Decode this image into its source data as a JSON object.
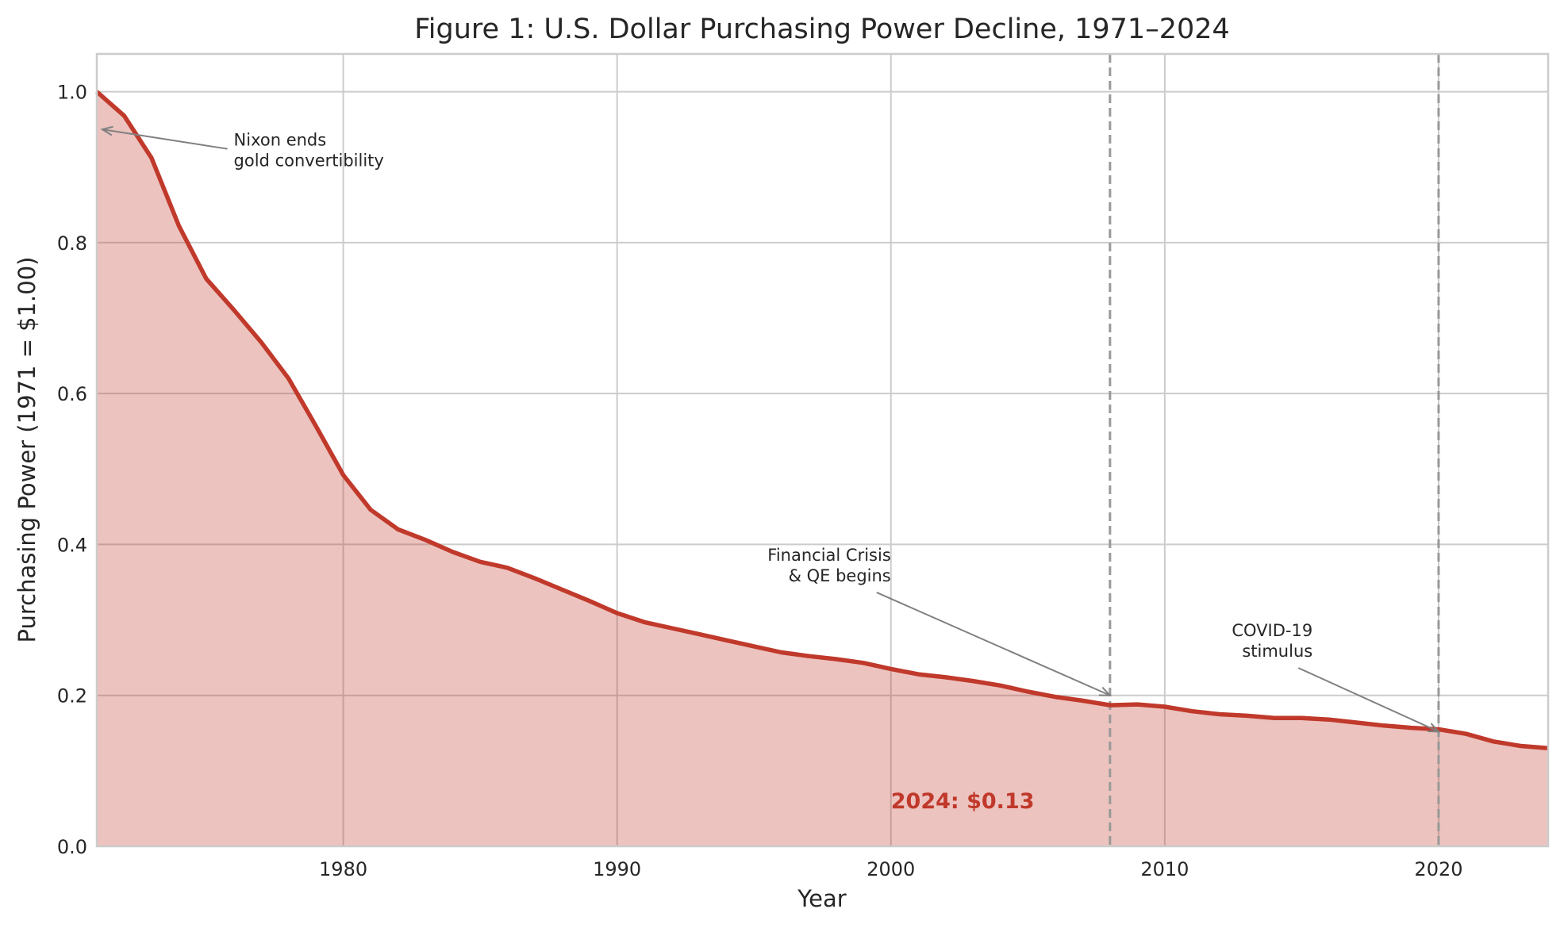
{
  "chart_data": {
    "type": "area",
    "title": "Figure 1: U.S. Dollar Purchasing Power Decline, 1971–2024",
    "xlabel": "Year",
    "ylabel": "Purchasing Power (1971 = $1.00)",
    "xlim": [
      1971,
      2024
    ],
    "ylim": [
      0,
      1.05
    ],
    "xticks": [
      1980,
      1990,
      2000,
      2010,
      2020
    ],
    "yticks": [
      0.0,
      0.2,
      0.4,
      0.6,
      0.8,
      1.0
    ],
    "ytick_labels": [
      "0.0",
      "0.2",
      "0.4",
      "0.6",
      "0.8",
      "1.0"
    ],
    "grid": true,
    "colors": {
      "line": "#c0392b",
      "fill": "#c0392b",
      "grid": "#cccccc",
      "annotation": "#808080",
      "vline": "#999999"
    },
    "x": [
      1971,
      1972,
      1973,
      1974,
      1975,
      1976,
      1977,
      1978,
      1979,
      1980,
      1981,
      1982,
      1983,
      1984,
      1985,
      1986,
      1987,
      1988,
      1989,
      1990,
      1991,
      1992,
      1993,
      1994,
      1995,
      1996,
      1997,
      1998,
      1999,
      2000,
      2001,
      2002,
      2003,
      2004,
      2005,
      2006,
      2007,
      2008,
      2009,
      2010,
      2011,
      2012,
      2013,
      2014,
      2015,
      2016,
      2017,
      2018,
      2019,
      2020,
      2021,
      2022,
      2023,
      2024
    ],
    "values": [
      1.0,
      0.968,
      0.912,
      0.822,
      0.752,
      0.711,
      0.668,
      0.62,
      0.557,
      0.492,
      0.446,
      0.42,
      0.406,
      0.39,
      0.377,
      0.369,
      0.355,
      0.34,
      0.325,
      0.309,
      0.297,
      0.289,
      0.281,
      0.273,
      0.265,
      0.257,
      0.252,
      0.248,
      0.243,
      0.235,
      0.228,
      0.224,
      0.219,
      0.213,
      0.205,
      0.198,
      0.193,
      0.187,
      0.188,
      0.185,
      0.179,
      0.175,
      0.173,
      0.17,
      0.17,
      0.168,
      0.164,
      0.16,
      0.157,
      0.155,
      0.149,
      0.139,
      0.133,
      0.13
    ],
    "vlines": [
      2008,
      2020
    ],
    "annotations": [
      {
        "lines": [
          "Nixon ends",
          "gold convertibility"
        ],
        "xy": [
          1971.2,
          0.95
        ],
        "xytext": [
          1976,
          0.92
        ],
        "align": "left"
      },
      {
        "lines": [
          "Financial Crisis",
          "& QE begins"
        ],
        "xy": [
          2008,
          0.2
        ],
        "xytext": [
          2000,
          0.37
        ],
        "align": "right"
      },
      {
        "lines": [
          "COVID-19",
          "stimulus"
        ],
        "xy": [
          2020,
          0.152
        ],
        "xytext": [
          2015.4,
          0.27
        ],
        "align": "right"
      }
    ],
    "final_label": {
      "text": "2024: $0.13",
      "x": 2000,
      "y": 0.06
    }
  }
}
